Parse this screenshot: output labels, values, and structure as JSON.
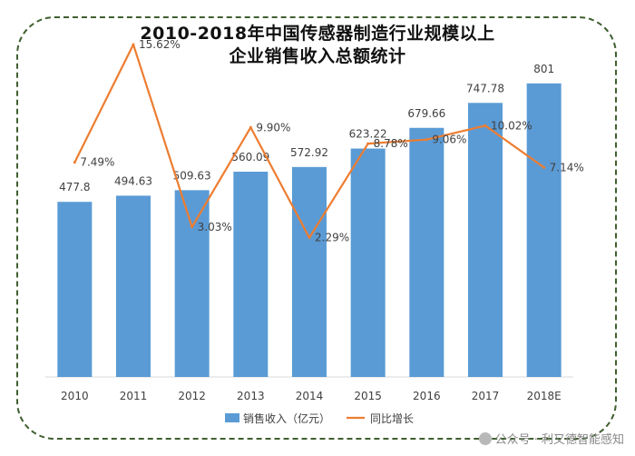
{
  "chart_data": {
    "type": "bar+line",
    "title_line1": "2010-2018年中国传感器制造行业规模以上",
    "title_line2": "企业销售收入总额统计",
    "categories": [
      "2010",
      "2011",
      "2012",
      "2013",
      "2014",
      "2015",
      "2016",
      "2017",
      "2018E"
    ],
    "series": [
      {
        "name": "销售收入（亿元）",
        "type": "bar",
        "values": [
          477.8,
          494.63,
          509.63,
          560.09,
          572.92,
          623.22,
          679.66,
          747.78,
          801
        ],
        "labels": [
          "477.8",
          "494.63",
          "509.63",
          "560.09",
          "572.92",
          "623.22",
          "679.66",
          "747.78",
          "801"
        ]
      },
      {
        "name": "同比增长",
        "type": "line",
        "values": [
          7.49,
          15.62,
          3.03,
          9.9,
          2.29,
          8.78,
          9.06,
          10.02,
          7.14
        ],
        "labels": [
          "7.49%",
          "15.62%",
          "3.03%",
          "9.90%",
          "2.29%",
          "8.78%",
          "9.06%",
          "10.02%",
          "7.14%"
        ]
      }
    ],
    "bar_ylim": [
      0,
      860
    ],
    "line_ylim": [
      -4.5,
      16.5
    ],
    "colors": {
      "bar": "#5b9bd5",
      "line": "#ed7d31"
    },
    "legend": "bottom"
  },
  "watermark": "公众号 · 利又德智能感知"
}
